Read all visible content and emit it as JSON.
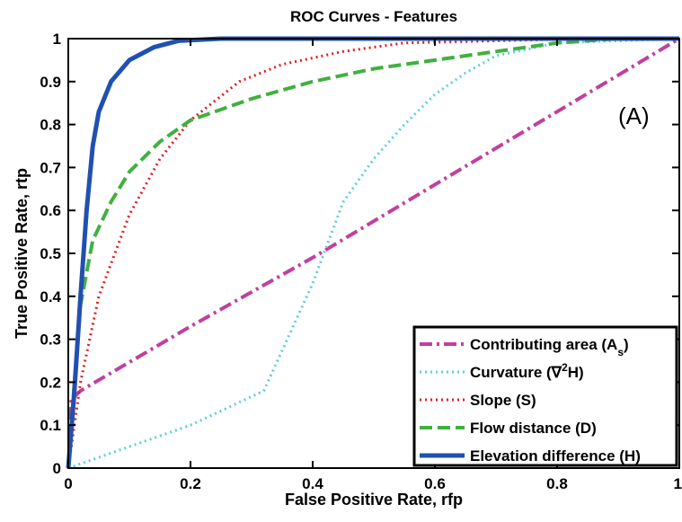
{
  "chart_data": {
    "type": "line",
    "title": "ROC Curves - Features",
    "xlabel": "False Positive Rate, rfp",
    "ylabel": "True Positive Rate, rtp",
    "xlim": [
      0,
      1
    ],
    "ylim": [
      0,
      1
    ],
    "xticks": [
      "0",
      "0.2",
      "0.4",
      "0.6",
      "0.8",
      "1"
    ],
    "yticks": [
      "0",
      "0.1",
      "0.2",
      "0.3",
      "0.4",
      "0.5",
      "0.6",
      "0.7",
      "0.8",
      "0.9",
      "1"
    ],
    "xtick_values": [
      0,
      0.2,
      0.4,
      0.6,
      0.8,
      1
    ],
    "ytick_values": [
      0,
      0.1,
      0.2,
      0.3,
      0.4,
      0.5,
      0.6,
      0.7,
      0.8,
      0.9,
      1
    ],
    "grid": false,
    "legend_position": "bottom-right",
    "annotation": "(A)",
    "series": [
      {
        "name": "Contributing area (A",
        "name_sub": "s",
        "name_suffix": ")",
        "color": "#c040a0",
        "style": "dashdot",
        "x": [
          0,
          0.005,
          0.02,
          0.2,
          0.4,
          0.6,
          0.8,
          1.0
        ],
        "y": [
          0.0,
          0.16,
          0.18,
          0.33,
          0.49,
          0.66,
          0.83,
          1.0
        ]
      },
      {
        "name": "Curvature (∇",
        "name_sup": "2",
        "name_suffix": "H)",
        "color": "#5ccfe0",
        "style": "dotted",
        "x": [
          0,
          0.1,
          0.2,
          0.32,
          0.4,
          0.45,
          0.5,
          0.55,
          0.6,
          0.65,
          0.7,
          0.8,
          0.9,
          1.0
        ],
        "y": [
          0.0,
          0.05,
          0.1,
          0.18,
          0.43,
          0.62,
          0.72,
          0.8,
          0.87,
          0.92,
          0.96,
          0.99,
          0.995,
          1.0
        ]
      },
      {
        "name": "Slope (S)",
        "color": "#e02020",
        "style": "dotted",
        "x": [
          0,
          0.02,
          0.05,
          0.1,
          0.15,
          0.2,
          0.28,
          0.35,
          0.45,
          0.55,
          0.7,
          0.85,
          1.0
        ],
        "y": [
          0.0,
          0.2,
          0.4,
          0.59,
          0.72,
          0.81,
          0.9,
          0.94,
          0.97,
          0.99,
          0.995,
          1.0,
          1.0
        ]
      },
      {
        "name": "Flow distance (D)",
        "color": "#40b040",
        "style": "dashed",
        "x": [
          0,
          0.01,
          0.02,
          0.04,
          0.07,
          0.1,
          0.15,
          0.2,
          0.3,
          0.4,
          0.5,
          0.6,
          0.7,
          0.8,
          0.9,
          1.0
        ],
        "y": [
          0.0,
          0.2,
          0.38,
          0.53,
          0.62,
          0.69,
          0.76,
          0.81,
          0.86,
          0.9,
          0.93,
          0.95,
          0.97,
          0.99,
          1.0,
          1.0
        ]
      },
      {
        "name": "Elevation difference (H)",
        "color": "#2050b0",
        "style": "solid",
        "x": [
          0,
          0.01,
          0.02,
          0.03,
          0.04,
          0.05,
          0.07,
          0.1,
          0.14,
          0.18,
          0.25,
          0.35,
          0.5,
          1.0
        ],
        "y": [
          0.0,
          0.18,
          0.4,
          0.6,
          0.75,
          0.83,
          0.9,
          0.95,
          0.98,
          0.995,
          1.0,
          1.0,
          1.0,
          1.0
        ]
      }
    ]
  }
}
